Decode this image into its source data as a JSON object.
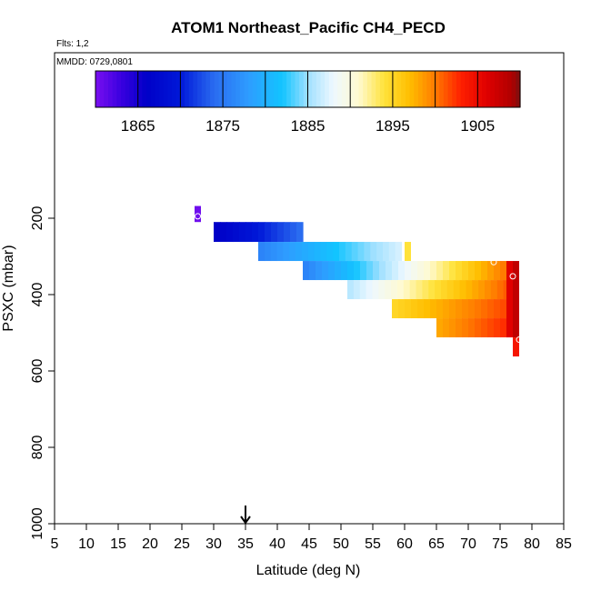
{
  "chart_data": {
    "type": "heatmap",
    "title": "ATOM1 Northeast_Pacific CH4_PECD",
    "flights_label": "Flts: 1,2",
    "dates_label": "MMDD: 0729,0801",
    "xlabel": "Latitude (deg N)",
    "ylabel": "PSXC (mbar)",
    "xlim": [
      5,
      85
    ],
    "ylim": [
      1000,
      0
    ],
    "x_ticks": [
      5,
      10,
      15,
      20,
      25,
      30,
      35,
      40,
      45,
      50,
      55,
      60,
      65,
      70,
      75,
      80,
      85
    ],
    "y_ticks": [
      200,
      400,
      600,
      800,
      1000
    ],
    "colorbar": {
      "range": [
        1860,
        1910
      ],
      "ticks": [
        1865,
        1875,
        1885,
        1895,
        1905
      ],
      "stops": [
        [
          1860,
          "#7a0ff0"
        ],
        [
          1863,
          "#3a00e0"
        ],
        [
          1866,
          "#0000c8"
        ],
        [
          1870,
          "#0018d8"
        ],
        [
          1874,
          "#2a6cf0"
        ],
        [
          1878,
          "#2e9cff"
        ],
        [
          1882,
          "#12c4ff"
        ],
        [
          1885,
          "#9fe0ff"
        ],
        [
          1888,
          "#eef8ff"
        ],
        [
          1891,
          "#fffad0"
        ],
        [
          1894,
          "#ffe23a"
        ],
        [
          1897,
          "#ffbe00"
        ],
        [
          1900,
          "#ff7a00"
        ],
        [
          1903,
          "#ff2000"
        ],
        [
          1906,
          "#e00000"
        ],
        [
          1909,
          "#b00000"
        ],
        [
          1910,
          "#7a1010"
        ]
      ]
    },
    "arrow_x": 35,
    "cells": [
      {
        "lat0": 27.0,
        "lat1": 28.0,
        "p0": 168,
        "p1": 210,
        "v": 1860.5
      },
      {
        "lat0": 30.0,
        "lat1": 44.0,
        "p0": 210,
        "p1": 262,
        "v": [
          1866,
          1874
        ]
      },
      {
        "lat0": 37.0,
        "lat1": 59.5,
        "p0": 262,
        "p1": 312,
        "v": [
          1876,
          1887
        ]
      },
      {
        "lat0": 60.0,
        "lat1": 61.0,
        "p0": 262,
        "p1": 312,
        "v": 1894
      },
      {
        "lat0": 44.0,
        "lat1": 76.0,
        "p0": 312,
        "p1": 362,
        "v": [
          1876,
          1900
        ]
      },
      {
        "lat0": 51.0,
        "lat1": 76.5,
        "p0": 362,
        "p1": 412,
        "v": [
          1886,
          1901
        ]
      },
      {
        "lat0": 58.0,
        "lat1": 77.0,
        "p0": 412,
        "p1": 462,
        "v": [
          1895,
          1902
        ]
      },
      {
        "lat0": 65.0,
        "lat1": 77.0,
        "p0": 462,
        "p1": 512,
        "v": [
          1898,
          1903
        ]
      },
      {
        "lat0": 76.0,
        "lat1": 77.0,
        "p0": 312,
        "p1": 512,
        "v": 1906
      },
      {
        "lat0": 77.0,
        "lat1": 78.0,
        "p0": 312,
        "p1": 512,
        "v": 1908
      },
      {
        "lat0": 77.0,
        "lat1": 78.0,
        "p0": 512,
        "p1": 562,
        "v": 1904
      }
    ],
    "markers": [
      {
        "lat": 27.5,
        "p": 195
      },
      {
        "lat": 74.0,
        "p": 315
      },
      {
        "lat": 77.0,
        "p": 352
      },
      {
        "lat": 78.0,
        "p": 518
      }
    ]
  }
}
